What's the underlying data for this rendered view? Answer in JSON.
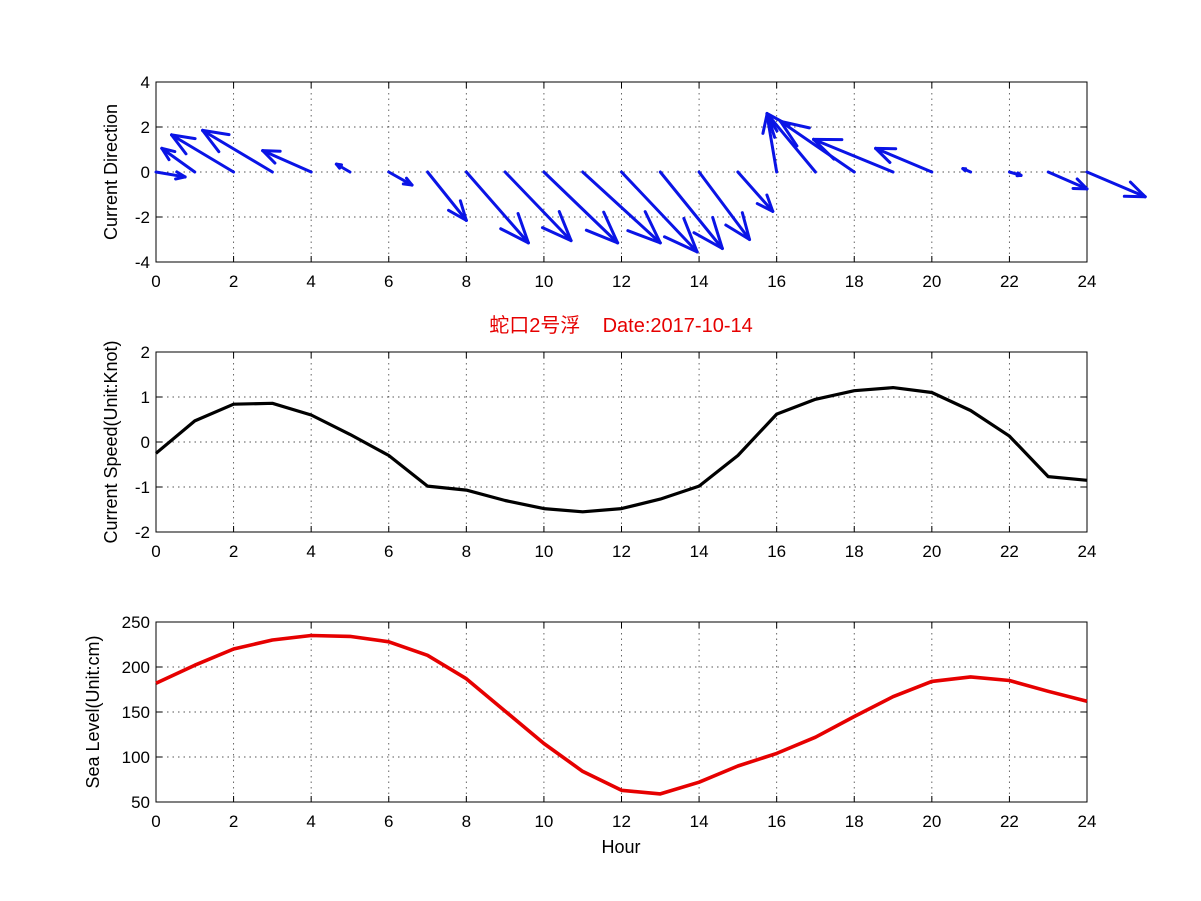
{
  "figure_title": "蛇口2号浮    Date:2017-10-14",
  "colors": {
    "title": "#e60000",
    "direction_arrows": "#0a14e6",
    "speed_line": "#000000",
    "sea_level_line": "#e60000"
  },
  "chart_data": [
    {
      "type": "quiver",
      "ylabel": "Current Direction",
      "xlim": [
        0,
        24
      ],
      "ylim": [
        -4,
        4
      ],
      "xticks": [
        0,
        2,
        4,
        6,
        8,
        10,
        12,
        14,
        16,
        18,
        20,
        22,
        24
      ],
      "yticks": [
        -4,
        -2,
        0,
        2,
        4
      ],
      "grid": true,
      "x": [
        0,
        1,
        2,
        3,
        4,
        5,
        6,
        7,
        8,
        9,
        10,
        11,
        12,
        13,
        14,
        15,
        16,
        17,
        18,
        19,
        20,
        21,
        22,
        23,
        24
      ],
      "u": [
        0.75,
        -0.85,
        -1.6,
        -1.8,
        -1.25,
        -0.35,
        0.6,
        1.0,
        1.6,
        1.7,
        1.9,
        2.0,
        1.95,
        1.6,
        1.3,
        0.9,
        -0.25,
        -1.25,
        -1.9,
        -2.05,
        -1.45,
        -0.2,
        0.3,
        1.0,
        1.5
      ],
      "v": [
        -0.22,
        1.05,
        1.65,
        1.85,
        0.95,
        0.35,
        -0.58,
        -2.15,
        -3.15,
        -3.05,
        -3.15,
        -3.15,
        -3.55,
        -3.4,
        -3.0,
        -1.75,
        2.55,
        2.6,
        2.25,
        1.45,
        1.05,
        0.15,
        -0.15,
        -0.75,
        -1.1
      ]
    },
    {
      "type": "line",
      "ylabel": "Current Speed(Unit:Knot)",
      "xlim": [
        0,
        24
      ],
      "ylim": [
        -2,
        2
      ],
      "xticks": [
        0,
        2,
        4,
        6,
        8,
        10,
        12,
        14,
        16,
        18,
        20,
        22,
        24
      ],
      "yticks": [
        -2,
        -1,
        0,
        1,
        2
      ],
      "grid": true,
      "x": [
        0,
        1,
        2,
        3,
        4,
        5,
        6,
        7,
        8,
        9,
        10,
        11,
        12,
        13,
        14,
        15,
        16,
        17,
        18,
        19,
        20,
        21,
        22,
        23,
        24
      ],
      "y": [
        -0.25,
        0.47,
        0.84,
        0.86,
        0.6,
        0.17,
        -0.3,
        -0.98,
        -1.07,
        -1.3,
        -1.48,
        -1.55,
        -1.48,
        -1.27,
        -0.98,
        -0.3,
        0.62,
        0.95,
        1.14,
        1.21,
        1.1,
        0.7,
        0.13,
        -0.77,
        -0.85
      ]
    },
    {
      "type": "line",
      "ylabel": "Sea Level(Unit:cm)",
      "xlabel": "Hour",
      "xlim": [
        0,
        24
      ],
      "ylim": [
        50,
        250
      ],
      "xticks": [
        0,
        2,
        4,
        6,
        8,
        10,
        12,
        14,
        16,
        18,
        20,
        22,
        24
      ],
      "yticks": [
        50,
        100,
        150,
        200,
        250
      ],
      "grid": true,
      "x": [
        0,
        1,
        2,
        3,
        4,
        5,
        6,
        7,
        8,
        9,
        10,
        11,
        12,
        13,
        14,
        15,
        16,
        17,
        18,
        19,
        20,
        21,
        22,
        23,
        24
      ],
      "y": [
        182,
        202,
        220,
        230,
        235,
        234,
        228,
        213,
        187,
        151,
        115,
        84,
        63,
        59,
        72,
        90,
        104,
        122,
        145,
        167,
        184,
        189,
        185,
        173,
        162
      ]
    }
  ]
}
